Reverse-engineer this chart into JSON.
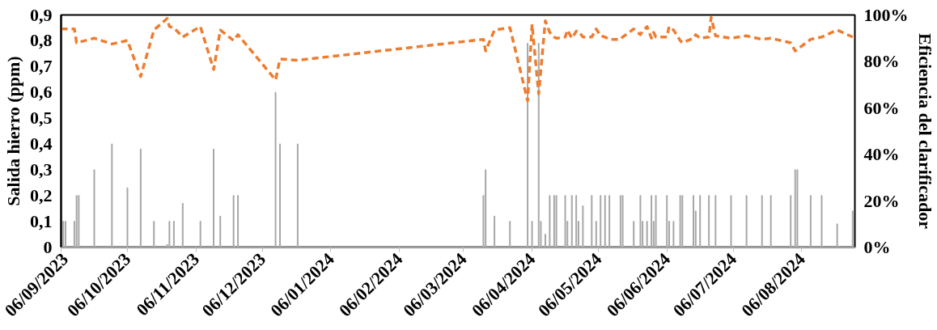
{
  "chart_data": {
    "type": "bar",
    "ylabel": "Salida hierro (ppm)",
    "y2label": "Eficiencia del clarificador",
    "xlim": [
      "2023-09-06",
      "2024-08-30"
    ],
    "xticks": [
      {
        "value": "2023-09-06",
        "label": "06/09/2023"
      },
      {
        "value": "2023-10-06",
        "label": "06/10/2023"
      },
      {
        "value": "2023-11-06",
        "label": "06/11/2023"
      },
      {
        "value": "2023-12-06",
        "label": "06/12/2023"
      },
      {
        "value": "2024-01-06",
        "label": "06/01/2024"
      },
      {
        "value": "2024-02-06",
        "label": "06/02/2024"
      },
      {
        "value": "2024-03-06",
        "label": "06/03/2024"
      },
      {
        "value": "2024-04-06",
        "label": "06/04/2024"
      },
      {
        "value": "2024-05-06",
        "label": "06/05/2024"
      },
      {
        "value": "2024-06-06",
        "label": "06/06/2024"
      },
      {
        "value": "2024-07-06",
        "label": "06/07/2024"
      },
      {
        "value": "2024-08-06",
        "label": "06/08/2024"
      }
    ],
    "ylim": [
      0,
      0.9
    ],
    "yticks": [
      0,
      {
        "value": 0.1,
        "label": "0,1"
      },
      {
        "value": 0.2,
        "label": "0,2"
      },
      {
        "value": 0.3,
        "label": "0,3"
      },
      {
        "value": 0.4,
        "label": "0,4"
      },
      {
        "value": 0.5,
        "label": "0,5"
      },
      {
        "value": 0.6,
        "label": "0,6"
      },
      {
        "value": 0.7,
        "label": "0,7"
      },
      {
        "value": 0.8,
        "label": "0,8"
      },
      {
        "value": 0.9,
        "label": "0,9"
      }
    ],
    "y2lim": [
      0,
      100
    ],
    "y2ticks": [
      {
        "value": 0,
        "label": "0%"
      },
      {
        "value": 20,
        "label": "20%"
      },
      {
        "value": 40,
        "label": "40%"
      },
      {
        "value": 60,
        "label": "60%"
      },
      {
        "value": 80,
        "label": "80%"
      },
      {
        "value": 100,
        "label": "100%"
      }
    ],
    "grid": false,
    "series": [
      {
        "color": "#a6a6a6",
        "x": [
          "2023-09-07",
          "2023-09-08",
          "2023-09-12",
          "2023-09-13",
          "2023-09-14",
          "2023-09-21",
          "2023-09-29",
          "2023-10-06",
          "2023-10-12",
          "2023-10-18",
          "2023-10-24",
          "2023-10-25",
          "2023-10-27",
          "2023-10-31",
          "2023-11-08",
          "2023-11-14",
          "2023-11-17",
          "2023-11-23",
          "2023-11-25",
          "2023-12-12",
          "2023-12-14",
          "2023-12-22",
          "2024-03-15",
          "2024-03-16",
          "2024-03-20",
          "2024-03-27",
          "2024-04-04",
          "2024-04-06",
          "2024-04-09",
          "2024-04-10",
          "2024-04-12",
          "2024-04-14",
          "2024-04-16",
          "2024-04-17",
          "2024-04-21",
          "2024-04-22",
          "2024-04-24",
          "2024-04-26",
          "2024-04-27",
          "2024-04-29",
          "2024-05-03",
          "2024-05-05",
          "2024-05-07",
          "2024-05-09",
          "2024-05-11",
          "2024-05-16",
          "2024-05-17",
          "2024-05-22",
          "2024-05-25",
          "2024-05-26",
          "2024-05-28",
          "2024-05-30",
          "2024-05-31",
          "2024-06-01",
          "2024-06-06",
          "2024-06-07",
          "2024-06-09",
          "2024-06-12",
          "2024-06-13",
          "2024-06-18",
          "2024-06-19",
          "2024-06-21",
          "2024-06-25",
          "2024-06-28",
          "2024-07-05",
          "2024-07-12",
          "2024-07-19",
          "2024-07-23",
          "2024-08-01",
          "2024-08-03",
          "2024-08-04",
          "2024-08-10",
          "2024-08-15",
          "2024-08-22",
          "2024-08-29"
        ],
        "values": [
          0.1,
          0.1,
          0.1,
          0.2,
          0.2,
          0.3,
          0.4,
          0.23,
          0.38,
          0.1,
          0.01,
          0.1,
          0.1,
          0.17,
          0.1,
          0.38,
          0.12,
          0.2,
          0.2,
          0.6,
          0.4,
          0.4,
          0.2,
          0.3,
          0.12,
          0.1,
          0.79,
          0.1,
          0.79,
          0.1,
          0.05,
          0.2,
          0.2,
          0.2,
          0.2,
          0.1,
          0.2,
          0.2,
          0.1,
          0.16,
          0.2,
          0.1,
          0.2,
          0.2,
          0.2,
          0.2,
          0.2,
          0.1,
          0.2,
          0.1,
          0.1,
          0.2,
          0.1,
          0.2,
          0.2,
          0.1,
          0.1,
          0.2,
          0.2,
          0.2,
          0.14,
          0.2,
          0.2,
          0.2,
          0.2,
          0.2,
          0.2,
          0.2,
          0.2,
          0.3,
          0.3,
          0.2,
          0.2,
          0.09,
          0.14
        ]
      },
      {
        "type": "line",
        "axis": "y2",
        "color": "#ed7d31",
        "line_style": "dashed",
        "marker": "none",
        "x": [
          "2023-09-06",
          "2023-09-12",
          "2023-09-13",
          "2023-09-21",
          "2023-09-29",
          "2023-10-06",
          "2023-10-12",
          "2023-10-18",
          "2023-10-24",
          "2023-10-25",
          "2023-10-27",
          "2023-10-31",
          "2023-11-08",
          "2023-11-14",
          "2023-11-17",
          "2023-11-23",
          "2023-11-25",
          "2023-12-12",
          "2023-12-14",
          "2023-12-22",
          "2024-03-15",
          "2024-03-16",
          "2024-03-20",
          "2024-03-27",
          "2024-04-04",
          "2024-04-06",
          "2024-04-09",
          "2024-04-12",
          "2024-04-14",
          "2024-04-16",
          "2024-04-17",
          "2024-04-21",
          "2024-04-22",
          "2024-04-24",
          "2024-04-26",
          "2024-04-27",
          "2024-04-29",
          "2024-05-03",
          "2024-05-05",
          "2024-05-07",
          "2024-05-09",
          "2024-05-11",
          "2024-05-16",
          "2024-05-17",
          "2024-05-22",
          "2024-05-25",
          "2024-05-26",
          "2024-05-28",
          "2024-05-30",
          "2024-05-31",
          "2024-06-01",
          "2024-06-06",
          "2024-06-07",
          "2024-06-09",
          "2024-06-12",
          "2024-06-13",
          "2024-06-18",
          "2024-06-19",
          "2024-06-21",
          "2024-06-25",
          "2024-06-26",
          "2024-06-28",
          "2024-07-05",
          "2024-07-12",
          "2024-07-19",
          "2024-07-23",
          "2024-08-01",
          "2024-08-03",
          "2024-08-10",
          "2024-08-15",
          "2024-08-22",
          "2024-08-29"
        ],
        "values": [
          94,
          94,
          88,
          90,
          87.5,
          89,
          73.5,
          93.5,
          98.5,
          95,
          94.5,
          90.5,
          95,
          76.5,
          93.5,
          89,
          91.5,
          72,
          81,
          80.5,
          89.5,
          84.5,
          93.5,
          94.5,
          63,
          96,
          66,
          97.5,
          92.5,
          90.5,
          90,
          90.5,
          93.5,
          90,
          93,
          93,
          90.5,
          90.5,
          94,
          91,
          90.5,
          89.5,
          89.5,
          90.5,
          94,
          91.5,
          93,
          95,
          90,
          92.5,
          90.5,
          90.5,
          95,
          93.5,
          89,
          88,
          90,
          91.5,
          90,
          90.5,
          99,
          91,
          90,
          91,
          89.5,
          90,
          88,
          84.5,
          89.5,
          90.5,
          93.5,
          90.5
        ]
      }
    ]
  }
}
